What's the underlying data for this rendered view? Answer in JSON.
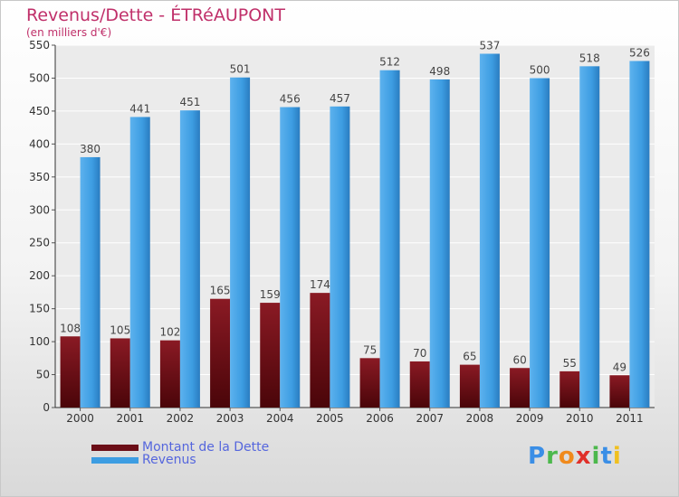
{
  "chart_data": {
    "type": "bar",
    "title": "Revenus/Dette - ÉTRéAUPONT",
    "subtitle": "(en milliers d'€)",
    "categories": [
      "2000",
      "2001",
      "2002",
      "2003",
      "2004",
      "2005",
      "2006",
      "2007",
      "2008",
      "2009",
      "2010",
      "2011"
    ],
    "series": [
      {
        "name": "Montant de la Dette",
        "color": "#6b0d16",
        "values": [
          108,
          105,
          102,
          165,
          159,
          174,
          75,
          70,
          65,
          60,
          55,
          49
        ]
      },
      {
        "name": "Revenus",
        "color": "#3d9de2",
        "values": [
          380,
          441,
          451,
          501,
          456,
          457,
          512,
          498,
          537,
          500,
          518,
          526
        ]
      }
    ],
    "ylim": [
      0,
      550
    ],
    "yticks": [
      0,
      50,
      100,
      150,
      200,
      250,
      300,
      350,
      400,
      450,
      500,
      550
    ],
    "grid": true,
    "legend_position": "bottom-left"
  },
  "logo": {
    "letters": [
      {
        "char": "P",
        "color": "#3a8ee6"
      },
      {
        "char": "r",
        "color": "#4cb84c"
      },
      {
        "char": "o",
        "color": "#f08a1c"
      },
      {
        "char": "x",
        "color": "#e0302a"
      },
      {
        "char": "i",
        "color": "#4cb84c"
      },
      {
        "char": "t",
        "color": "#3a8ee6"
      },
      {
        "char": "i",
        "color": "#f0c020"
      }
    ]
  }
}
